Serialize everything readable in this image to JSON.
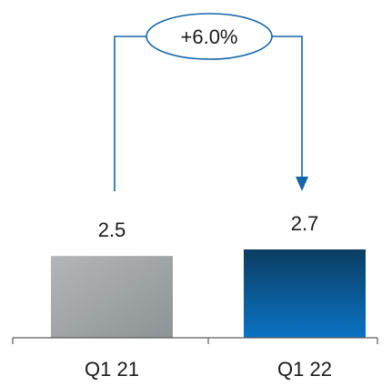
{
  "chart_data": {
    "type": "bar",
    "categories": [
      "Q1 21",
      "Q1 22"
    ],
    "values": [
      2.5,
      2.7
    ],
    "value_labels": [
      "2.5",
      "2.7"
    ],
    "change_label": "+6.0%",
    "ylim": [
      0,
      2.7
    ],
    "colors": {
      "bar_1_light": "#b3b6b8",
      "bar_1_dark": "#8d9396",
      "bar_2_top": "#0a3d62",
      "bar_2_bottom": "#0a73c4",
      "arrow": "#1565a6",
      "axis": "#5a5a5a"
    },
    "grid": false,
    "legend": "none"
  }
}
